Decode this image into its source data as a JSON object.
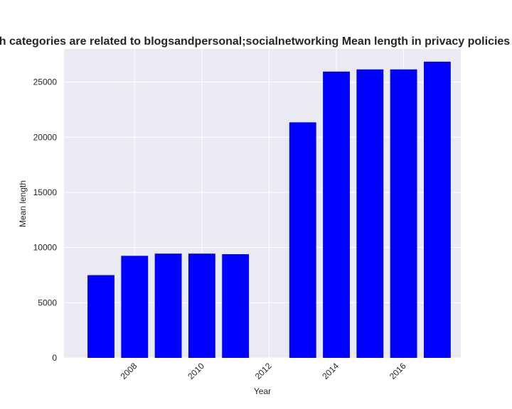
{
  "chart_data": {
    "type": "bar",
    "title": "h categories are related to blogsandpersonal;socialnetworking Mean length in privacy policies",
    "xlabel": "Year",
    "ylabel": "Mean length",
    "x": [
      2007,
      2008,
      2009,
      2010,
      2011,
      2012,
      2013,
      2014,
      2015,
      2016,
      2017
    ],
    "values": [
      7500,
      9250,
      9450,
      9450,
      9400,
      0,
      21350,
      25950,
      26150,
      26150,
      26850
    ],
    "xlim": [
      2005.9,
      2017.7
    ],
    "ylim": [
      0,
      28000
    ],
    "xticks": [
      2008,
      2010,
      2012,
      2014,
      2016
    ],
    "yticks": [
      0,
      5000,
      10000,
      15000,
      20000,
      25000
    ],
    "grid": true,
    "bar_color": "#0000ff",
    "plot_background": "#eaeaf2",
    "grid_color": "#ffffff"
  }
}
